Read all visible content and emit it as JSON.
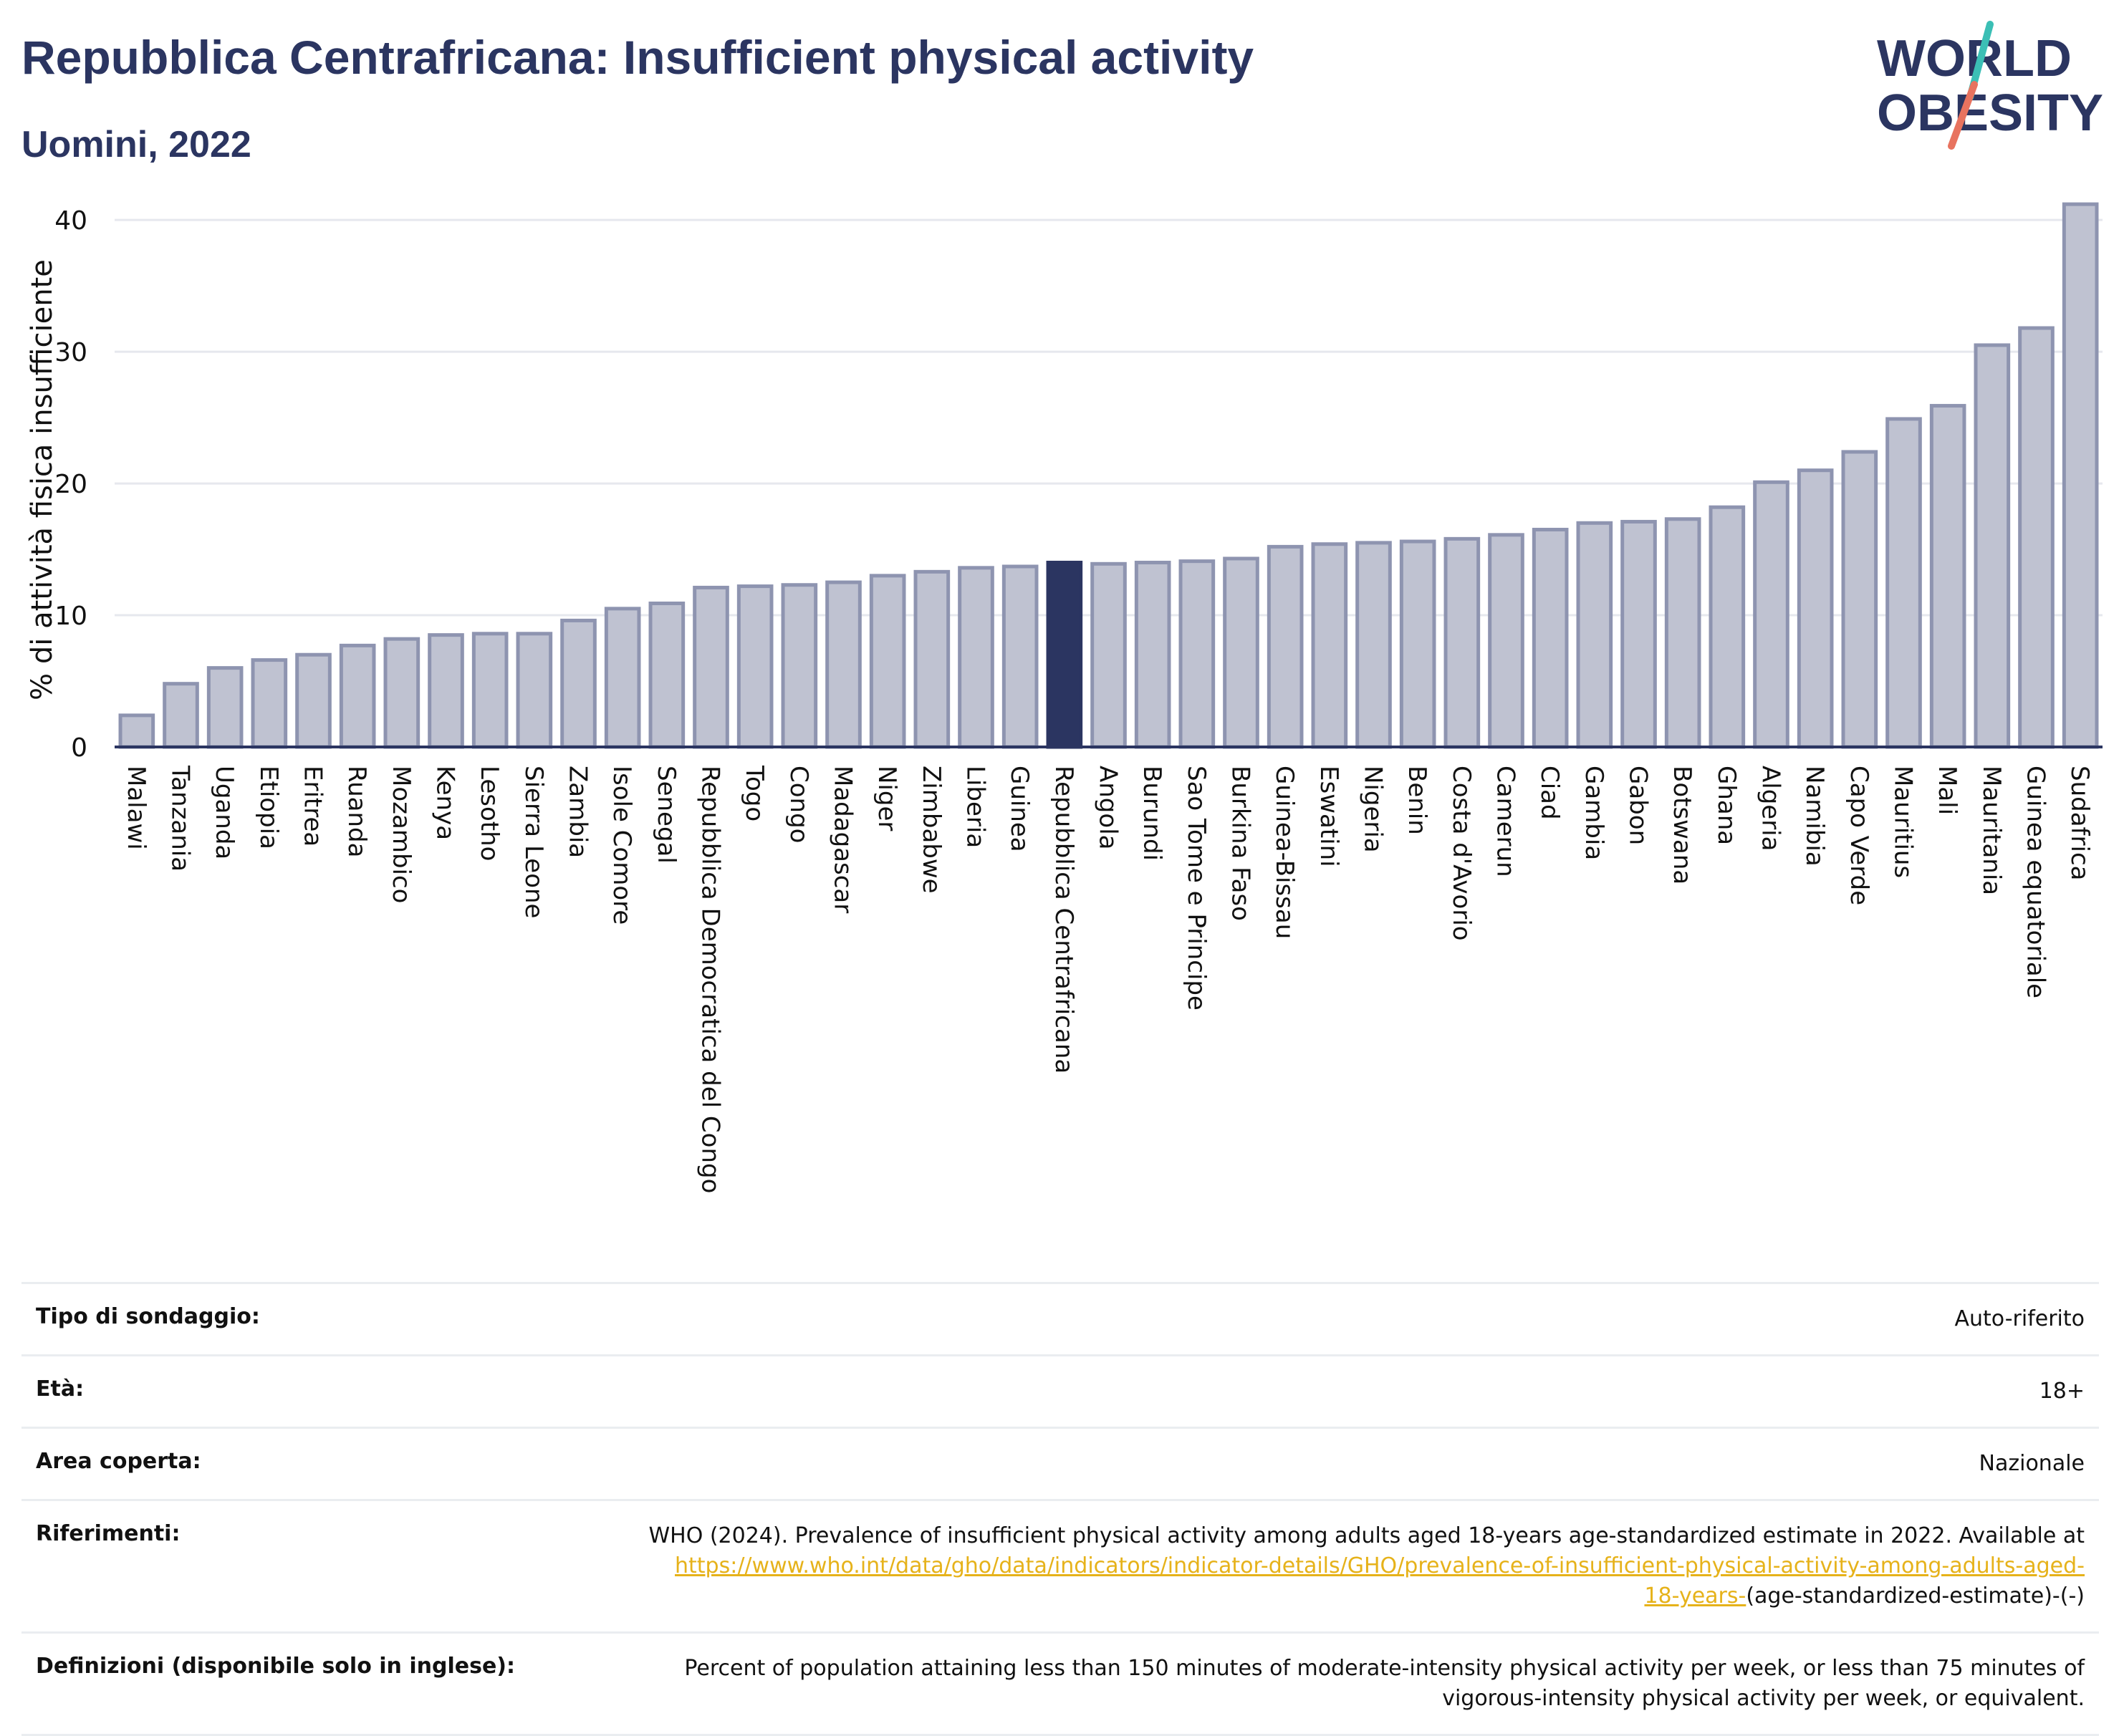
{
  "header": {
    "title": "Repubblica Centrafricana: Insufficient physical activity",
    "subtitle": "Uomini, 2022"
  },
  "logo": {
    "line1": "WORLD",
    "line2": "OBESITY"
  },
  "chart_data": {
    "type": "bar",
    "title": "Repubblica Centrafricana: Insufficient physical activity",
    "subtitle": "Uomini, 2022",
    "ylabel": "% di attività fisica insufficiente",
    "xlabel": "",
    "ylim": [
      0,
      43
    ],
    "yticks": [
      0,
      10,
      20,
      30,
      40
    ],
    "grid": true,
    "highlight": "Repubblica Centrafricana",
    "colors": {
      "bar": "#bfc2d1",
      "bar_edge": "#8e94b0",
      "highlight": "#2b3561"
    },
    "categories": [
      "Malawi",
      "Tanzania",
      "Uganda",
      "Etiopia",
      "Eritrea",
      "Ruanda",
      "Mozambico",
      "Kenya",
      "Lesotho",
      "Sierra Leone",
      "Zambia",
      "Isole Comore",
      "Senegal",
      "Repubblica Democratica del Congo",
      "Togo",
      "Congo",
      "Madagascar",
      "Niger",
      "Zimbabwe",
      "Liberia",
      "Guinea",
      "Repubblica Centrafricana",
      "Angola",
      "Burundi",
      "Sao Tome e Principe",
      "Burkina Faso",
      "Guinea-Bissau",
      "Eswatini",
      "Nigeria",
      "Benin",
      "Costa d'Avorio",
      "Camerun",
      "Ciad",
      "Gambia",
      "Gabon",
      "Botswana",
      "Ghana",
      "Algeria",
      "Namibia",
      "Capo Verde",
      "Mauritius",
      "Mali",
      "Mauritania",
      "Guinea equatoriale",
      "Sudafrica"
    ],
    "values": [
      2.4,
      4.8,
      6.0,
      6.6,
      7.0,
      7.7,
      8.2,
      8.5,
      8.6,
      8.6,
      9.6,
      10.5,
      10.9,
      12.1,
      12.2,
      12.3,
      12.5,
      13.0,
      13.3,
      13.6,
      13.7,
      14.0,
      13.9,
      14.0,
      14.1,
      14.3,
      15.2,
      15.4,
      15.5,
      15.6,
      15.8,
      16.1,
      16.5,
      17.0,
      17.1,
      17.3,
      18.2,
      20.1,
      21.0,
      22.4,
      24.9,
      25.9,
      30.5,
      31.8,
      41.2
    ]
  },
  "info": {
    "rows": [
      {
        "label": "Tipo di sondaggio:",
        "value": "Auto-riferito"
      },
      {
        "label": "Età:",
        "value": "18+"
      },
      {
        "label": "Area coperta:",
        "value": "Nazionale"
      }
    ],
    "references": {
      "label": "Riferimenti:",
      "text": "WHO (2024). Prevalence of insufficient physical activity among adults aged 18-years age-standardized estimate in 2022. Available at",
      "link_line1": "https://www.who.int/data/gho/data/indicators/indicator-details/GHO/prevalence-of-insufficient-physical-activity-among-adults-aged-",
      "link_line2": "18-years-",
      "tail": "(age-standardized-estimate)-(-)"
    },
    "definitions": {
      "label": "Definizioni (disponibile solo in inglese):",
      "text_line1": "Percent of population attaining less than 150 minutes of moderate-intensity physical activity per week, or less than 75 minutes of",
      "text_line2": "vigorous-intensity physical activity per week, or equivalent."
    }
  }
}
